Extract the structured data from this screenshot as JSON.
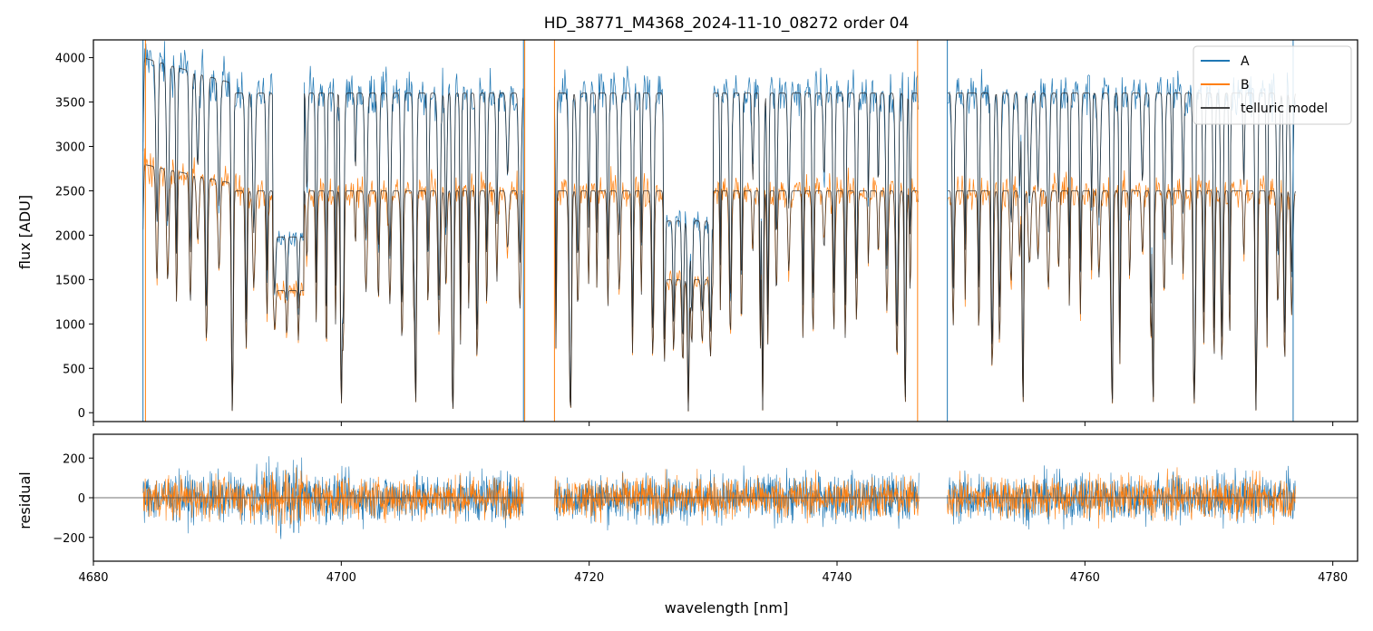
{
  "chart_data": [
    {
      "type": "line",
      "title": "HD_38771_M4368_2024-11-10_08272  order 04",
      "xlabel": "",
      "ylabel": "flux [ADU]",
      "xlim": [
        4680,
        4782
      ],
      "ylim": [
        -100,
        4200
      ],
      "grid": false,
      "legend_position": "top-right",
      "xticks": [
        4680,
        4700,
        4720,
        4740,
        4760,
        4780
      ],
      "xtick_labels_shown": false,
      "yticks": [
        0,
        500,
        1000,
        1500,
        2000,
        2500,
        3000,
        3500,
        4000
      ],
      "ytick_labels": [
        "0",
        "500",
        "1000",
        "1500",
        "2000",
        "2500",
        "3000",
        "3500",
        "4000"
      ],
      "x_range_data": [
        4684,
        4777
      ],
      "segments": [
        [
          4684,
          4714.7
        ],
        [
          4717.2,
          4746.6
        ],
        [
          4748.9,
          4777
        ]
      ],
      "series": [
        {
          "name": "A",
          "color": "#1f77b4",
          "continuum": 3600,
          "continuum_at_start": 4000
        },
        {
          "name": "B",
          "color": "#ff7f0e",
          "continuum": 2500,
          "continuum_at_start": 2800
        },
        {
          "name": "telluric model",
          "color": "#222222"
        }
      ],
      "deep_absorption_lines_nm": [
        4691.2,
        4700,
        4706,
        4709,
        4718.5,
        4728,
        4734,
        4745.5,
        4755,
        4762.2,
        4765.5,
        4768.8,
        4773.8
      ]
    },
    {
      "type": "line",
      "title": "",
      "xlabel": "wavelength [nm]",
      "ylabel": "residual",
      "xlim": [
        4680,
        4782
      ],
      "ylim": [
        -320,
        320
      ],
      "grid": false,
      "xticks": [
        4680,
        4700,
        4720,
        4740,
        4760,
        4780
      ],
      "xtick_labels": [
        "4680",
        "4700",
        "4720",
        "4740",
        "4760",
        "4780"
      ],
      "yticks": [
        -200,
        0,
        200
      ],
      "ytick_labels": [
        "−200",
        "0",
        "200"
      ],
      "zero_line": 0,
      "segments": [
        [
          4684,
          4714.7
        ],
        [
          4717.2,
          4746.6
        ],
        [
          4748.9,
          4777
        ]
      ],
      "series": [
        {
          "name": "A",
          "color": "#1f77b4",
          "residual_scatter": 110
        },
        {
          "name": "B",
          "color": "#ff7f0e",
          "residual_scatter": 95
        }
      ]
    }
  ]
}
